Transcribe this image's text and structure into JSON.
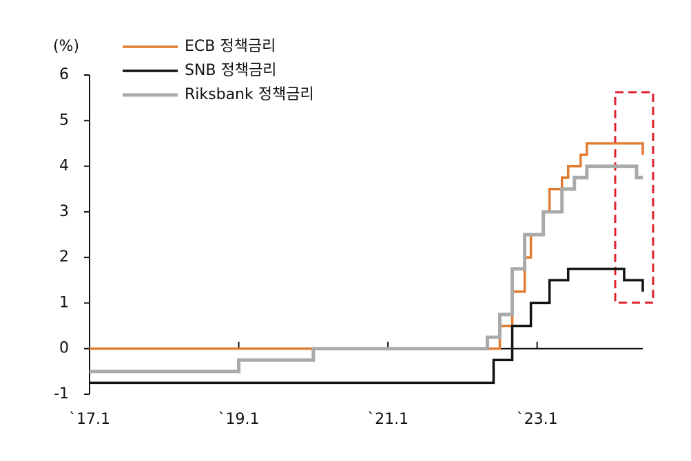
{
  "chart_data": {
    "type": "step-line",
    "y_label": "(%)",
    "xlim": [
      "2017-01",
      "2024-06"
    ],
    "xticks": [
      {
        "value": "2017-01",
        "label": "`17.1"
      },
      {
        "value": "2019-01",
        "label": "`19.1"
      },
      {
        "value": "2021-01",
        "label": "`21.1"
      },
      {
        "value": "2023-01",
        "label": "`23.1"
      }
    ],
    "ylim": [
      -1,
      6
    ],
    "yticks": [
      {
        "value": -1,
        "label": "-1"
      },
      0,
      1,
      2,
      3,
      4,
      5,
      6
    ],
    "series": [
      {
        "name": "ECB 정책금리",
        "color": "#e07b30",
        "x": [
          "2017-01",
          "2022-07",
          "2022-09",
          "2022-11",
          "2022-12",
          "2023-02",
          "2023-03",
          "2023-05",
          "2023-06",
          "2023-08",
          "2023-09",
          "2024-06"
        ],
        "values": [
          0,
          0.5,
          1.25,
          2.0,
          2.5,
          3.0,
          3.5,
          3.75,
          4.0,
          4.25,
          4.5,
          4.25
        ]
      },
      {
        "name": "SNB 정책금리",
        "color": "#111111",
        "x": [
          "2017-01",
          "2022-06",
          "2022-09",
          "2022-12",
          "2023-03",
          "2023-06",
          "2024-03",
          "2024-06"
        ],
        "values": [
          -0.75,
          -0.25,
          0.5,
          1.0,
          1.5,
          1.75,
          1.5,
          1.25
        ]
      },
      {
        "name": "Riksbank 정책금리",
        "color": "#aaaaaa",
        "x": [
          "2017-01",
          "2019-01",
          "2020-01",
          "2022-05",
          "2022-07",
          "2022-09",
          "2022-11",
          "2023-02",
          "2023-05",
          "2023-07",
          "2023-09",
          "2024-05",
          "2024-06"
        ],
        "values": [
          -0.5,
          -0.25,
          0,
          0.25,
          0.75,
          1.75,
          2.5,
          3.0,
          3.5,
          3.75,
          4.0,
          3.75,
          3.75
        ]
      }
    ]
  }
}
